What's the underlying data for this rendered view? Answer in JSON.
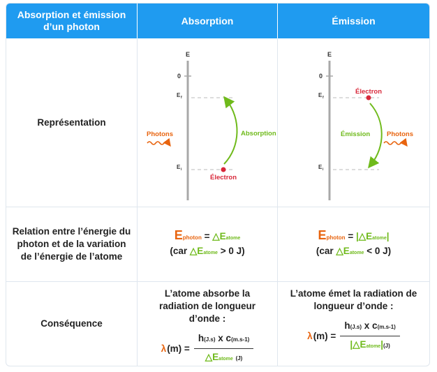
{
  "header": {
    "col1": "Absorption et émission d’un photon",
    "col2": "Absorption",
    "col3": "Émission"
  },
  "rows": {
    "representation": "Représentation",
    "relation": "Relation entre l’énergie du photon et de la variation de l’énergie de l’atome",
    "consequence": "Conséquence"
  },
  "diagram": {
    "axis_label": "E",
    "zero": "0",
    "level_high": "E",
    "level_low": "E",
    "level_high_sub": "f",
    "level_low_sub": "i",
    "photons": "Photons",
    "electron": "Électron",
    "absorption": "Absorption",
    "emission": "Émission"
  },
  "relation": {
    "E": "E",
    "photon_sub": "photon",
    "eq": "=",
    "delta": "△E",
    "atome_sub": "atome",
    "car": "(car",
    "gt": "> 0 J)",
    "lt": "< 0 J)"
  },
  "consequence": {
    "absorbe": "L’atome absorbe la radiation de longueur d’onde :",
    "emet": "L’atome émet la radiation de longueur d’onde :",
    "lambda": "λ",
    "m": "(m) =",
    "h": "h",
    "h_unit": "(J.s)",
    "x_c": "x c",
    "c_unit": "(m.s-1)",
    "delta": "△E",
    "atome_sub": "atome",
    "j_unit": "(J)"
  },
  "colors": {
    "header_bg": "#1f9bf0",
    "orange": "#e8640f",
    "green": "#6fba1b",
    "red": "#d8283a",
    "axis": "#a8a8a8"
  }
}
